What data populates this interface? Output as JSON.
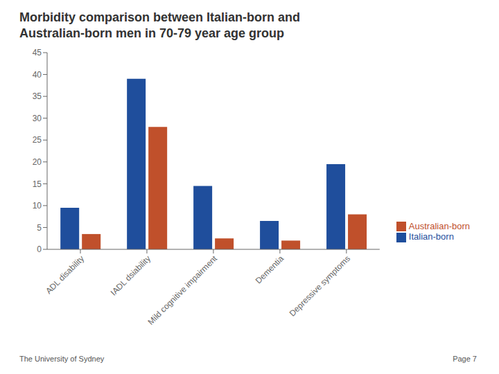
{
  "chart_data": {
    "type": "bar",
    "title": "Morbidity comparison between Italian-born and\nAustralian-born men in 70-79 year age group",
    "categories": [
      "ADL disability",
      "IADL dsiability",
      "Mild cognitive impairment",
      "Dementia",
      "Depressive symptoms"
    ],
    "series": [
      {
        "name": "Italian-born",
        "color": "#1F4E9C",
        "values": [
          9.5,
          39,
          14.5,
          6.5,
          19.5
        ]
      },
      {
        "name": "Australian-born",
        "color": "#C0502B",
        "values": [
          3.5,
          28,
          2.5,
          2.0,
          8.0
        ]
      }
    ],
    "ylim": [
      0,
      45
    ],
    "yticks": [
      0,
      5,
      10,
      15,
      20,
      25,
      30,
      35,
      40,
      45
    ],
    "grid": false,
    "legend": "right",
    "annotations": [
      "The University of Sydney",
      "Page 7"
    ]
  }
}
